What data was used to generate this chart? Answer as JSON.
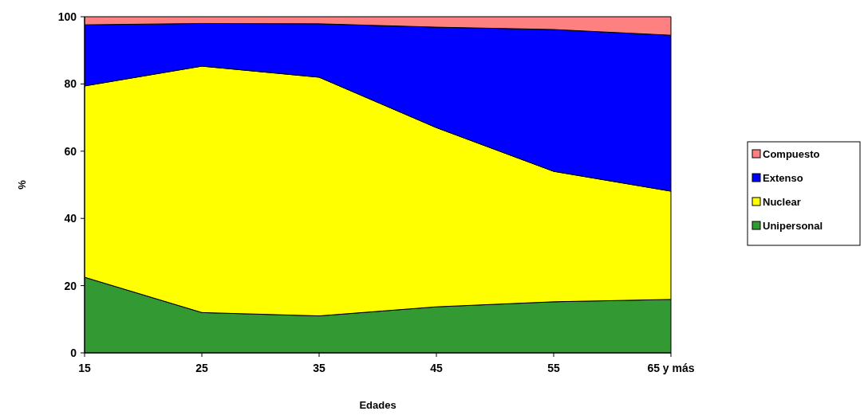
{
  "chart_data": {
    "type": "area",
    "stacked": true,
    "xlabel": "Edades",
    "ylabel": "%",
    "categories": [
      "15",
      "25",
      "35",
      "45",
      "55",
      "65 y más"
    ],
    "ylim": [
      0,
      100
    ],
    "yticks": [
      0,
      20,
      40,
      60,
      80,
      100
    ],
    "grid": false,
    "legend": "right",
    "series": [
      {
        "name": "Unipersonal",
        "color": "#339933",
        "values": [
          22.5,
          12,
          11,
          13.7,
          15.2,
          15.9
        ]
      },
      {
        "name": "Nuclear",
        "color": "#ffff00",
        "values": [
          56.9,
          73.3,
          71,
          53.3,
          38.8,
          32.2
        ]
      },
      {
        "name": "Extenso",
        "color": "#0000ff",
        "values": [
          18.2,
          12.7,
          15.9,
          29.9,
          42.2,
          46.4
        ]
      },
      {
        "name": "Compuesto",
        "color": "#ff8080",
        "values": [
          2.4,
          2,
          2.1,
          3.1,
          3.8,
          5.5
        ]
      }
    ]
  }
}
